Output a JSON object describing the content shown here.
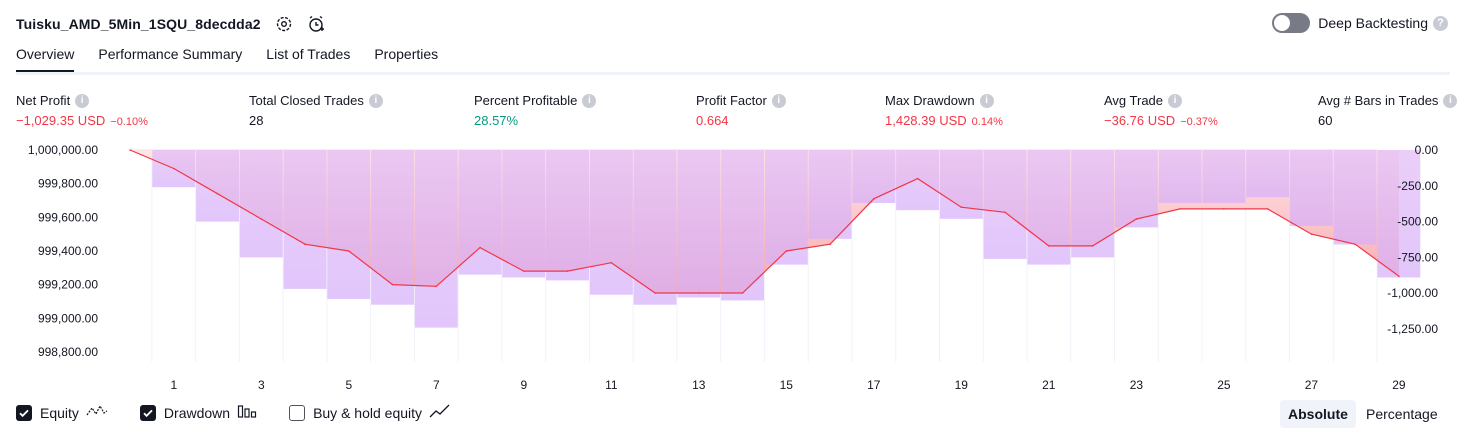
{
  "header": {
    "strategy_name": "Tuisku_AMD_5Min_1SQU_8decdda2",
    "settings_icon": "gear-icon",
    "alert_icon": "alarm-clock-add-icon",
    "deep_backtesting_label": "Deep Backtesting",
    "deep_backtesting_enabled": false
  },
  "tabs": [
    {
      "label": "Overview",
      "active": true
    },
    {
      "label": "Performance Summary",
      "active": false
    },
    {
      "label": "List of Trades",
      "active": false
    },
    {
      "label": "Properties",
      "active": false
    }
  ],
  "metrics": [
    {
      "label": "Net Profit",
      "value": "−1,029.35 USD",
      "sub": "−0.10%",
      "color": "#f23645"
    },
    {
      "label": "Total Closed Trades",
      "value": "28",
      "sub": "",
      "color": "#131722"
    },
    {
      "label": "Percent Profitable",
      "value": "28.57%",
      "sub": "",
      "color": "#089981"
    },
    {
      "label": "Profit Factor",
      "value": "0.664",
      "sub": "",
      "color": "#f23645"
    },
    {
      "label": "Max Drawdown",
      "value": "1,428.39 USD",
      "sub": "0.14%",
      "color": "#f23645"
    },
    {
      "label": "Avg Trade",
      "value": "−36.76 USD",
      "sub": "−0.37%",
      "color": "#f23645"
    },
    {
      "label": "Avg # Bars in Trades",
      "value": "60",
      "sub": "",
      "color": "#131722"
    }
  ],
  "legend": {
    "equity_label": "Equity",
    "equity_checked": true,
    "drawdown_label": "Drawdown",
    "drawdown_checked": true,
    "buyhold_label": "Buy & hold equity",
    "buyhold_checked": false
  },
  "modes": {
    "absolute_label": "Absolute",
    "percentage_label": "Percentage",
    "active": "Absolute"
  },
  "colors": {
    "equity_line": "#f23645",
    "equity_fill_top": "#ffe4e6",
    "equity_fill_bottom": "#f7a3a9",
    "drawdown_bar": "#dbb6f7",
    "text": "#131722",
    "loss": "#f23645",
    "win": "#089981"
  },
  "chart_data": {
    "type": "area",
    "x_tick_labels": [
      "1",
      "3",
      "5",
      "7",
      "9",
      "11",
      "13",
      "15",
      "17",
      "19",
      "21",
      "23",
      "25",
      "27",
      "29"
    ],
    "left_axis_ticks": [
      "1,000,000.00",
      "999,800.00",
      "999,600.00",
      "999,400.00",
      "999,200.00",
      "999,000.00",
      "998,800.00"
    ],
    "right_axis_ticks": [
      "0.00",
      "-250.00",
      "-500.00",
      "-750.00",
      "-1,000.00",
      "-1,250.00"
    ],
    "ylim_left": [
      998740,
      1000000
    ],
    "ylim_right": [
      -1480,
      0
    ],
    "series": [
      {
        "name": "Equity",
        "x": [
          0,
          1,
          2,
          3,
          4,
          5,
          6,
          7,
          8,
          9,
          10,
          11,
          12,
          13,
          14,
          15,
          16,
          17,
          18,
          19,
          20,
          21,
          22,
          23,
          24,
          25,
          26,
          27,
          28,
          29
        ],
        "values": [
          1000000,
          999890,
          999740,
          999590,
          999440,
          999400,
          999200,
          999190,
          999420,
          999280,
          999280,
          999330,
          999150,
          999150,
          999150,
          999400,
          999440,
          999710,
          999830,
          999660,
          999630,
          999430,
          999430,
          999590,
          999650,
          999650,
          999650,
          999500,
          999440,
          999250
        ]
      },
      {
        "name": "Drawdown",
        "x": [
          1,
          2,
          3,
          4,
          5,
          6,
          7,
          8,
          9,
          10,
          11,
          12,
          13,
          14,
          15,
          16,
          17,
          18,
          19,
          20,
          21,
          22,
          23,
          24,
          25,
          26,
          27,
          28,
          29
        ],
        "values": [
          -260,
          -500,
          -750,
          -970,
          -1040,
          -1080,
          -1240,
          -870,
          -890,
          -910,
          -1010,
          -1080,
          -1030,
          -1050,
          -800,
          -620,
          -370,
          -420,
          -480,
          -760,
          -800,
          -750,
          -540,
          -370,
          -370,
          -330,
          -530,
          -660,
          -890
        ]
      }
    ]
  }
}
